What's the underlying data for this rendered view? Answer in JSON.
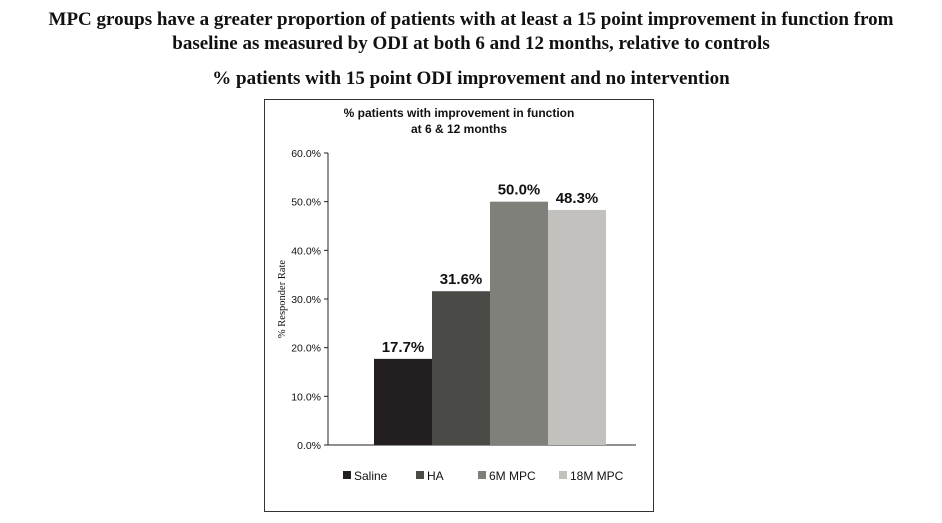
{
  "headline": {
    "line1": "MPC groups have a greater proportion of patients with at least a 15 point improvement in function from",
    "line2": "baseline as measured by ODI at both 6 and 12 months, relative to controls"
  },
  "subheadline": "% patients with 15 point ODI improvement and no intervention",
  "chart_data": {
    "type": "bar",
    "title": [
      "% patients with improvement in function",
      "at 6 & 12 months"
    ],
    "ylabel": "% Responder Rate",
    "xlabel": "",
    "ylim": [
      0,
      60
    ],
    "yticks": [
      "0.0%",
      "10.0%",
      "20.0%",
      "30.0%",
      "40.0%",
      "50.0%",
      "60.0%"
    ],
    "categories": [
      "Saline",
      "HA",
      "6M MPC",
      "18M MPC"
    ],
    "values": [
      17.7,
      31.6,
      50.0,
      48.3
    ],
    "data_labels": [
      "17.7%",
      "31.6%",
      "50.0%",
      "48.3%"
    ],
    "colors": [
      "#231f20",
      "#4a4b47",
      "#80807a",
      "#c2c1bd"
    ],
    "legend_position": "bottom",
    "grid": false
  }
}
